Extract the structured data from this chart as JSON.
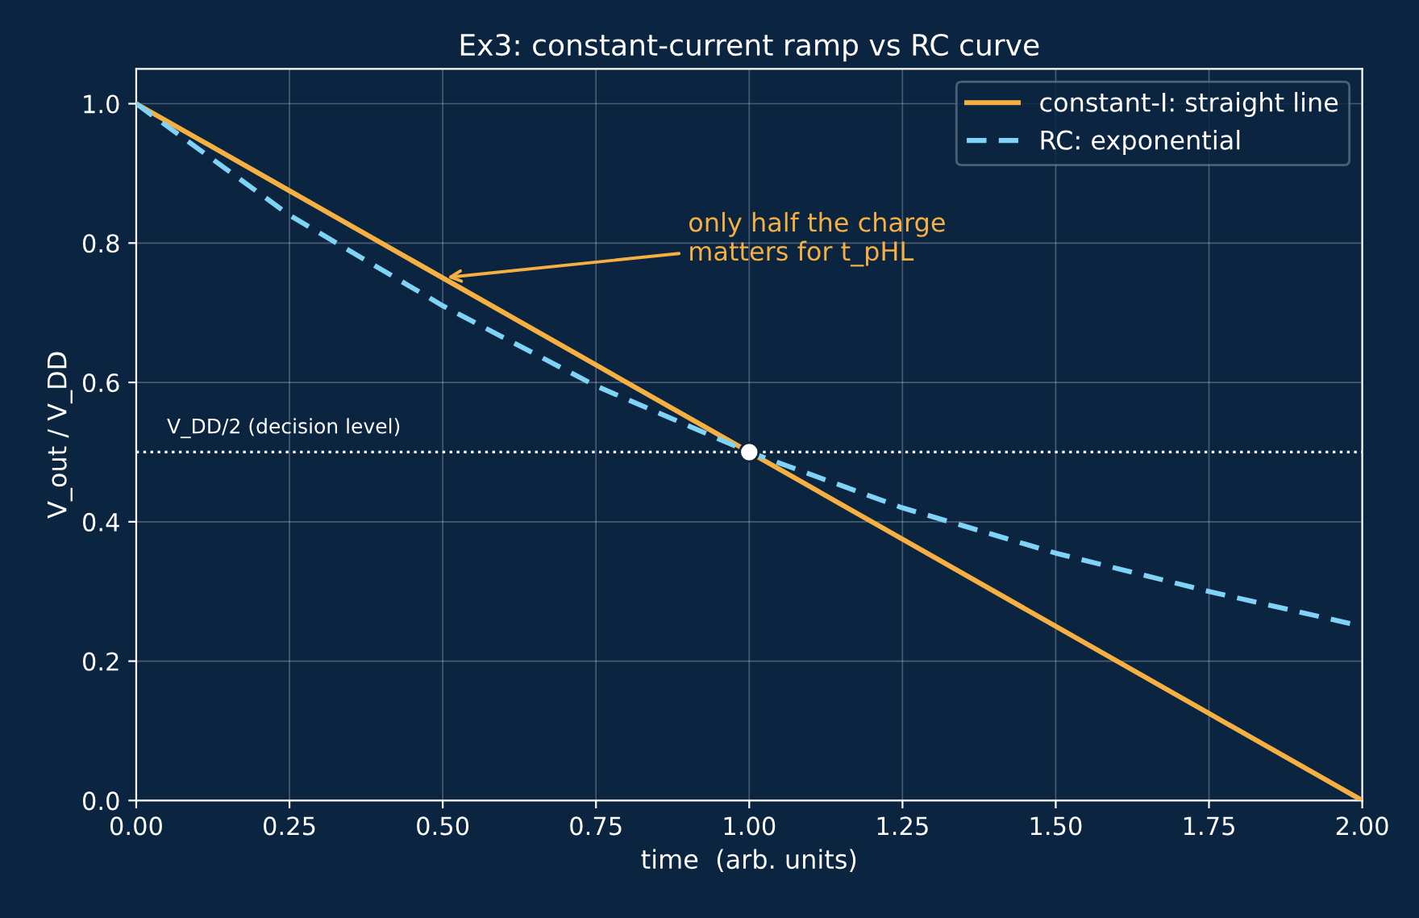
{
  "chart_data": {
    "type": "line",
    "title": "Ex3: constant-current ramp vs RC curve",
    "xlabel": "time  (arb. units)",
    "ylabel": "V_out / V_DD",
    "x": [
      0,
      0.25,
      0.5,
      0.75,
      1.0,
      1.25,
      1.5,
      1.75,
      2.0
    ],
    "series": [
      {
        "name": "constant-I: straight line",
        "color": "#f5b041",
        "line_style": "solid",
        "values": [
          1.0,
          0.875,
          0.75,
          0.625,
          0.5,
          0.375,
          0.25,
          0.125,
          0.0
        ]
      },
      {
        "name": "RC: exponential",
        "color": "#7fd3f7",
        "line_style": "dashed",
        "values": [
          1.0,
          0.84,
          0.71,
          0.595,
          0.5,
          0.42,
          0.355,
          0.3,
          0.25
        ]
      },
      {
        "type": "scatter",
        "color": "#ffffff",
        "marker": "circle",
        "x": [
          1.0
        ],
        "values": [
          0.5
        ]
      }
    ],
    "ref_lines": [
      {
        "axis": "y",
        "value": 0.5,
        "label": "V_DD/2 (decision level)",
        "color": "#ffffff",
        "line_style": "dotted"
      }
    ],
    "annotations": [
      {
        "text": "only half the charge\nmatters for t_pHL",
        "x": 0.5,
        "y": 0.75
      }
    ],
    "xlim": [
      0,
      2.0
    ],
    "ylim": [
      0,
      1.05
    ],
    "xticks": [
      {
        "value": 0,
        "label": "0.00"
      },
      {
        "value": 0.25,
        "label": "0.25"
      },
      {
        "value": 0.5,
        "label": "0.50"
      },
      {
        "value": 0.75,
        "label": "0.75"
      },
      {
        "value": 1.0,
        "label": "1.00"
      },
      {
        "value": 1.25,
        "label": "1.25"
      },
      {
        "value": 1.5,
        "label": "1.50"
      },
      {
        "value": 1.75,
        "label": "1.75"
      },
      {
        "value": 2.0,
        "label": "2.00"
      }
    ],
    "yticks": [
      {
        "value": 0,
        "label": "0.0"
      },
      {
        "value": 0.2,
        "label": "0.2"
      },
      {
        "value": 0.4,
        "label": "0.4"
      },
      {
        "value": 0.6,
        "label": "0.6"
      },
      {
        "value": 0.8,
        "label": "0.8"
      },
      {
        "value": 1.0,
        "label": "1.0"
      }
    ],
    "grid": true,
    "legend": "top right"
  }
}
